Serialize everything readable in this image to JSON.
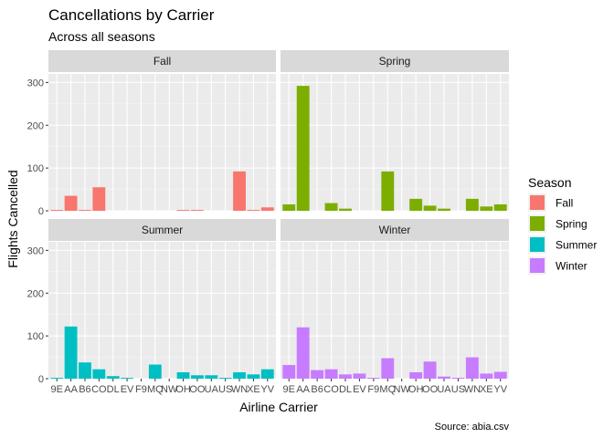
{
  "chart_data": {
    "type": "bar",
    "title": "Cancellations by Carrier",
    "subtitle": "Across all seasons",
    "xlabel": "Airline Carrier",
    "ylabel": "Flights Cancelled",
    "caption": "Source: abia.csv",
    "ylim": [
      0,
      320
    ],
    "yticks": [
      0,
      100,
      200,
      300
    ],
    "categories": [
      "9E",
      "AA",
      "B6",
      "CO",
      "DL",
      "EV",
      "F9",
      "MQ",
      "NW",
      "OH",
      "OO",
      "UA",
      "US",
      "WN",
      "XE",
      "YV"
    ],
    "legend": {
      "title": "Season",
      "position": "right",
      "items": [
        {
          "label": "Fall",
          "color": "#F8766D"
        },
        {
          "label": "Spring",
          "color": "#7CAE00"
        },
        {
          "label": "Summer",
          "color": "#00BFC4"
        },
        {
          "label": "Winter",
          "color": "#C77CFF"
        }
      ]
    },
    "series": [
      {
        "name": "Fall",
        "color": "#F8766D",
        "values": [
          2,
          35,
          2,
          55,
          0,
          0,
          0,
          0,
          0,
          2,
          2,
          0,
          0,
          92,
          2,
          8
        ]
      },
      {
        "name": "Spring",
        "color": "#7CAE00",
        "values": [
          15,
          292,
          0,
          18,
          5,
          0,
          0,
          92,
          0,
          28,
          12,
          5,
          0,
          28,
          10,
          15
        ]
      },
      {
        "name": "Summer",
        "color": "#00BFC4",
        "values": [
          2,
          122,
          38,
          22,
          6,
          2,
          0,
          33,
          0,
          15,
          8,
          8,
          2,
          15,
          10,
          22
        ]
      },
      {
        "name": "Winter",
        "color": "#C77CFF",
        "values": [
          32,
          120,
          20,
          22,
          10,
          12,
          2,
          48,
          0,
          15,
          40,
          5,
          2,
          50,
          12,
          16
        ]
      }
    ]
  }
}
